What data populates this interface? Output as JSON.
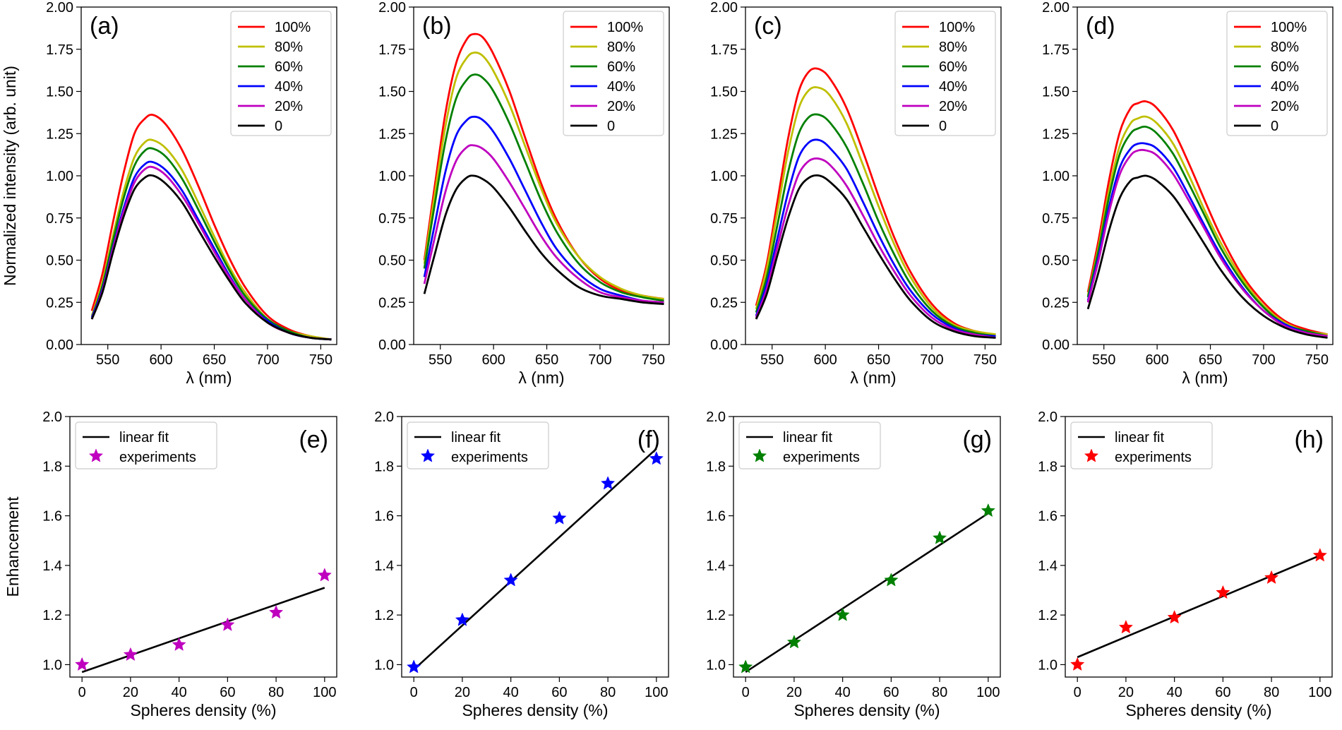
{
  "chart_data": [
    {
      "panel": "(a)",
      "type": "line",
      "xlabel": "λ (nm)",
      "ylabel": "Normalized intensity (arb. unit)",
      "xlim": [
        525,
        765
      ],
      "ylim": [
        0,
        2.0
      ],
      "xticks": [
        550,
        600,
        650,
        700,
        750
      ],
      "yticks": [
        0.0,
        0.25,
        0.5,
        0.75,
        1.0,
        1.25,
        1.5,
        1.75,
        2.0
      ],
      "ytick_labels": [
        "0.00",
        "0.25",
        "0.50",
        "0.75",
        "1.00",
        "1.25",
        "1.50",
        "1.75",
        "2.00"
      ],
      "legend_position": "top-right",
      "x": [
        535,
        545,
        555,
        565,
        575,
        585,
        593,
        605,
        620,
        635,
        650,
        665,
        680,
        700,
        720,
        740,
        760
      ],
      "series": [
        {
          "name": "100%",
          "color": "#ff0000",
          "values": [
            0.2,
            0.42,
            0.73,
            1.02,
            1.25,
            1.34,
            1.36,
            1.3,
            1.15,
            0.94,
            0.71,
            0.5,
            0.33,
            0.17,
            0.09,
            0.05,
            0.03
          ]
        },
        {
          "name": "80%",
          "color": "#bfbf00",
          "values": [
            0.17,
            0.37,
            0.65,
            0.91,
            1.11,
            1.2,
            1.21,
            1.16,
            1.03,
            0.84,
            0.64,
            0.45,
            0.3,
            0.15,
            0.08,
            0.05,
            0.03
          ]
        },
        {
          "name": "60%",
          "color": "#008000",
          "values": [
            0.16,
            0.35,
            0.62,
            0.87,
            1.06,
            1.15,
            1.16,
            1.11,
            0.98,
            0.8,
            0.61,
            0.43,
            0.28,
            0.15,
            0.08,
            0.04,
            0.03
          ]
        },
        {
          "name": "40%",
          "color": "#0000ff",
          "values": [
            0.16,
            0.33,
            0.58,
            0.81,
            0.99,
            1.07,
            1.08,
            1.03,
            0.91,
            0.74,
            0.57,
            0.4,
            0.26,
            0.14,
            0.07,
            0.04,
            0.03
          ]
        },
        {
          "name": "20%",
          "color": "#bf00bf",
          "values": [
            0.15,
            0.32,
            0.57,
            0.79,
            0.96,
            1.04,
            1.05,
            1.0,
            0.88,
            0.72,
            0.55,
            0.39,
            0.26,
            0.13,
            0.07,
            0.04,
            0.03
          ]
        },
        {
          "name": "0",
          "color": "#000000",
          "values": [
            0.15,
            0.31,
            0.55,
            0.76,
            0.92,
            0.99,
            1.0,
            0.95,
            0.84,
            0.68,
            0.52,
            0.37,
            0.24,
            0.13,
            0.07,
            0.04,
            0.03
          ]
        }
      ]
    },
    {
      "panel": "(b)",
      "type": "line",
      "xlabel": "λ (nm)",
      "ylabel": "",
      "xlim": [
        525,
        765
      ],
      "ylim": [
        0,
        2.0
      ],
      "xticks": [
        550,
        600,
        650,
        700,
        750
      ],
      "yticks": [
        0.0,
        0.25,
        0.5,
        0.75,
        1.0,
        1.25,
        1.5,
        1.75,
        2.0
      ],
      "ytick_labels": [
        "0.00",
        "0.25",
        "0.50",
        "0.75",
        "1.00",
        "1.25",
        "1.50",
        "1.75",
        "2.00"
      ],
      "legend_position": "top-right",
      "x": [
        535,
        545,
        555,
        565,
        575,
        582,
        590,
        600,
        615,
        630,
        645,
        660,
        680,
        700,
        720,
        740,
        760
      ],
      "series": [
        {
          "name": "100%",
          "color": "#ff0000",
          "values": [
            0.5,
            0.95,
            1.38,
            1.67,
            1.81,
            1.84,
            1.82,
            1.72,
            1.5,
            1.22,
            0.95,
            0.73,
            0.52,
            0.39,
            0.32,
            0.29,
            0.27
          ]
        },
        {
          "name": "80%",
          "color": "#bfbf00",
          "values": [
            0.48,
            0.9,
            1.3,
            1.58,
            1.7,
            1.73,
            1.71,
            1.62,
            1.42,
            1.17,
            0.92,
            0.71,
            0.52,
            0.4,
            0.33,
            0.29,
            0.27
          ]
        },
        {
          "name": "60%",
          "color": "#008000",
          "values": [
            0.45,
            0.84,
            1.21,
            1.46,
            1.57,
            1.6,
            1.58,
            1.5,
            1.31,
            1.08,
            0.85,
            0.66,
            0.48,
            0.37,
            0.31,
            0.28,
            0.26
          ]
        },
        {
          "name": "40%",
          "color": "#0000ff",
          "values": [
            0.4,
            0.72,
            1.03,
            1.24,
            1.33,
            1.35,
            1.33,
            1.26,
            1.1,
            0.91,
            0.72,
            0.56,
            0.42,
            0.33,
            0.29,
            0.26,
            0.25
          ]
        },
        {
          "name": "20%",
          "color": "#bf00bf",
          "values": [
            0.36,
            0.64,
            0.91,
            1.09,
            1.17,
            1.18,
            1.16,
            1.1,
            0.96,
            0.8,
            0.64,
            0.51,
            0.39,
            0.31,
            0.28,
            0.26,
            0.25
          ]
        },
        {
          "name": "0",
          "color": "#000000",
          "values": [
            0.3,
            0.54,
            0.77,
            0.92,
            0.99,
            1.0,
            0.98,
            0.93,
            0.81,
            0.67,
            0.54,
            0.44,
            0.34,
            0.29,
            0.27,
            0.25,
            0.24
          ]
        }
      ]
    },
    {
      "panel": "(c)",
      "type": "line",
      "xlabel": "λ (nm)",
      "ylabel": "",
      "xlim": [
        525,
        765
      ],
      "ylim": [
        0,
        2.0
      ],
      "xticks": [
        550,
        600,
        650,
        700,
        750
      ],
      "yticks": [
        0.0,
        0.25,
        0.5,
        0.75,
        1.0,
        1.25,
        1.5,
        1.75,
        2.0
      ],
      "ytick_labels": [
        "0.00",
        "0.25",
        "0.50",
        "0.75",
        "1.00",
        "1.25",
        "1.50",
        "1.75",
        "2.00"
      ],
      "legend_position": "top-right",
      "x": [
        535,
        545,
        555,
        565,
        575,
        585,
        595,
        605,
        620,
        635,
        650,
        665,
        680,
        700,
        720,
        740,
        760
      ],
      "series": [
        {
          "name": "100%",
          "color": "#ff0000",
          "values": [
            0.23,
            0.48,
            0.85,
            1.22,
            1.5,
            1.62,
            1.63,
            1.57,
            1.4,
            1.15,
            0.88,
            0.63,
            0.43,
            0.24,
            0.13,
            0.08,
            0.06
          ]
        },
        {
          "name": "80%",
          "color": "#bfbf00",
          "values": [
            0.21,
            0.45,
            0.79,
            1.14,
            1.4,
            1.51,
            1.52,
            1.47,
            1.31,
            1.07,
            0.82,
            0.59,
            0.4,
            0.22,
            0.12,
            0.08,
            0.06
          ]
        },
        {
          "name": "60%",
          "color": "#008000",
          "values": [
            0.19,
            0.4,
            0.71,
            1.02,
            1.25,
            1.35,
            1.36,
            1.31,
            1.17,
            0.96,
            0.73,
            0.53,
            0.36,
            0.2,
            0.11,
            0.07,
            0.05
          ]
        },
        {
          "name": "40%",
          "color": "#0000ff",
          "values": [
            0.17,
            0.36,
            0.63,
            0.9,
            1.11,
            1.2,
            1.21,
            1.16,
            1.04,
            0.85,
            0.65,
            0.47,
            0.32,
            0.18,
            0.1,
            0.06,
            0.05
          ]
        },
        {
          "name": "20%",
          "color": "#bf00bf",
          "values": [
            0.16,
            0.33,
            0.58,
            0.82,
            1.01,
            1.09,
            1.1,
            1.06,
            0.94,
            0.77,
            0.59,
            0.43,
            0.29,
            0.16,
            0.09,
            0.06,
            0.04
          ]
        },
        {
          "name": "0",
          "color": "#000000",
          "values": [
            0.15,
            0.3,
            0.53,
            0.75,
            0.92,
            0.99,
            1.0,
            0.96,
            0.86,
            0.7,
            0.54,
            0.39,
            0.26,
            0.14,
            0.08,
            0.05,
            0.04
          ]
        }
      ]
    },
    {
      "panel": "(d)",
      "type": "line",
      "xlabel": "λ (nm)",
      "ylabel": "",
      "xlim": [
        525,
        765
      ],
      "ylim": [
        0,
        2.0
      ],
      "xticks": [
        550,
        600,
        650,
        700,
        750
      ],
      "yticks": [
        0.0,
        0.25,
        0.5,
        0.75,
        1.0,
        1.25,
        1.5,
        1.75,
        2.0
      ],
      "ytick_labels": [
        "0.00",
        "0.25",
        "0.50",
        "0.75",
        "1.00",
        "1.25",
        "1.50",
        "1.75",
        "2.00"
      ],
      "legend_position": "top-right",
      "x": [
        535,
        545,
        555,
        565,
        575,
        582,
        590,
        600,
        615,
        630,
        645,
        660,
        680,
        700,
        720,
        740,
        760
      ],
      "series": [
        {
          "name": "100%",
          "color": "#ff0000",
          "values": [
            0.31,
            0.62,
            0.98,
            1.26,
            1.4,
            1.43,
            1.44,
            1.4,
            1.27,
            1.07,
            0.85,
            0.64,
            0.41,
            0.25,
            0.14,
            0.09,
            0.06
          ]
        },
        {
          "name": "80%",
          "color": "#bfbf00",
          "values": [
            0.29,
            0.58,
            0.92,
            1.18,
            1.31,
            1.34,
            1.35,
            1.31,
            1.19,
            1.0,
            0.79,
            0.6,
            0.39,
            0.23,
            0.13,
            0.08,
            0.06
          ]
        },
        {
          "name": "60%",
          "color": "#008000",
          "values": [
            0.28,
            0.56,
            0.88,
            1.13,
            1.25,
            1.28,
            1.29,
            1.25,
            1.13,
            0.95,
            0.76,
            0.57,
            0.37,
            0.22,
            0.12,
            0.08,
            0.05
          ]
        },
        {
          "name": "40%",
          "color": "#0000ff",
          "values": [
            0.26,
            0.52,
            0.82,
            1.05,
            1.16,
            1.19,
            1.19,
            1.16,
            1.05,
            0.88,
            0.7,
            0.53,
            0.34,
            0.2,
            0.12,
            0.07,
            0.05
          ]
        },
        {
          "name": "20%",
          "color": "#bf00bf",
          "values": [
            0.25,
            0.5,
            0.79,
            1.01,
            1.12,
            1.15,
            1.15,
            1.12,
            1.01,
            0.85,
            0.68,
            0.51,
            0.33,
            0.2,
            0.11,
            0.07,
            0.05
          ]
        },
        {
          "name": "0",
          "color": "#000000",
          "values": [
            0.21,
            0.43,
            0.68,
            0.87,
            0.97,
            0.99,
            1.0,
            0.97,
            0.88,
            0.74,
            0.59,
            0.44,
            0.28,
            0.17,
            0.1,
            0.06,
            0.04
          ]
        }
      ]
    },
    {
      "panel": "(e)",
      "type": "scatter",
      "xlabel": "Spheres density (%)",
      "ylabel": "Enhancement",
      "xlim": [
        -5,
        105
      ],
      "ylim": [
        0.95,
        2.0
      ],
      "xticks": [
        0,
        20,
        40,
        60,
        80,
        100
      ],
      "yticks": [
        1.0,
        1.2,
        1.4,
        1.6,
        1.8,
        2.0
      ],
      "ytick_labels": [
        "1.0",
        "1.2",
        "1.4",
        "1.6",
        "1.8",
        "2.0"
      ],
      "legend_position": "top-left",
      "marker_color": "#bf00bf",
      "fit_label": "linear fit",
      "experiments_label": "experiments",
      "x": [
        0,
        20,
        40,
        60,
        80,
        100
      ],
      "experiments": [
        1.0,
        1.04,
        1.08,
        1.16,
        1.21,
        1.36
      ],
      "fit": [
        0.97,
        1.31
      ]
    },
    {
      "panel": "(f)",
      "type": "scatter",
      "xlabel": "Spheres density (%)",
      "ylabel": "",
      "xlim": [
        -5,
        105
      ],
      "ylim": [
        0.95,
        2.0
      ],
      "xticks": [
        0,
        20,
        40,
        60,
        80,
        100
      ],
      "yticks": [
        1.0,
        1.2,
        1.4,
        1.6,
        1.8,
        2.0
      ],
      "ytick_labels": [
        "1.0",
        "1.2",
        "1.4",
        "1.6",
        "1.8",
        "2.0"
      ],
      "legend_position": "top-left",
      "marker_color": "#0000ff",
      "fit_label": "linear fit",
      "experiments_label": "experiments",
      "x": [
        0,
        20,
        40,
        60,
        80,
        100
      ],
      "experiments": [
        0.99,
        1.18,
        1.34,
        1.59,
        1.73,
        1.83
      ],
      "fit": [
        0.98,
        1.87
      ]
    },
    {
      "panel": "(g)",
      "type": "scatter",
      "xlabel": "Spheres density (%)",
      "ylabel": "",
      "xlim": [
        -5,
        105
      ],
      "ylim": [
        0.95,
        2.0
      ],
      "xticks": [
        0,
        20,
        40,
        60,
        80,
        100
      ],
      "yticks": [
        1.0,
        1.2,
        1.4,
        1.6,
        1.8,
        2.0
      ],
      "ytick_labels": [
        "1.0",
        "1.2",
        "1.4",
        "1.6",
        "1.8",
        "2.0"
      ],
      "legend_position": "top-left",
      "marker_color": "#008000",
      "fit_label": "linear fit",
      "experiments_label": "experiments",
      "x": [
        0,
        20,
        40,
        60,
        80,
        100
      ],
      "experiments": [
        0.99,
        1.09,
        1.2,
        1.34,
        1.51,
        1.62
      ],
      "fit": [
        0.97,
        1.61
      ]
    },
    {
      "panel": "(h)",
      "type": "scatter",
      "xlabel": "Spheres density (%)",
      "ylabel": "",
      "xlim": [
        -5,
        105
      ],
      "ylim": [
        0.95,
        2.0
      ],
      "xticks": [
        0,
        20,
        40,
        60,
        80,
        100
      ],
      "yticks": [
        1.0,
        1.2,
        1.4,
        1.6,
        1.8,
        2.0
      ],
      "ytick_labels": [
        "1.0",
        "1.2",
        "1.4",
        "1.6",
        "1.8",
        "2.0"
      ],
      "legend_position": "top-left",
      "marker_color": "#ff0000",
      "fit_label": "linear fit",
      "experiments_label": "experiments",
      "x": [
        0,
        20,
        40,
        60,
        80,
        100
      ],
      "experiments": [
        1.0,
        1.15,
        1.19,
        1.29,
        1.35,
        1.44
      ],
      "fit": [
        1.03,
        1.44
      ]
    }
  ]
}
